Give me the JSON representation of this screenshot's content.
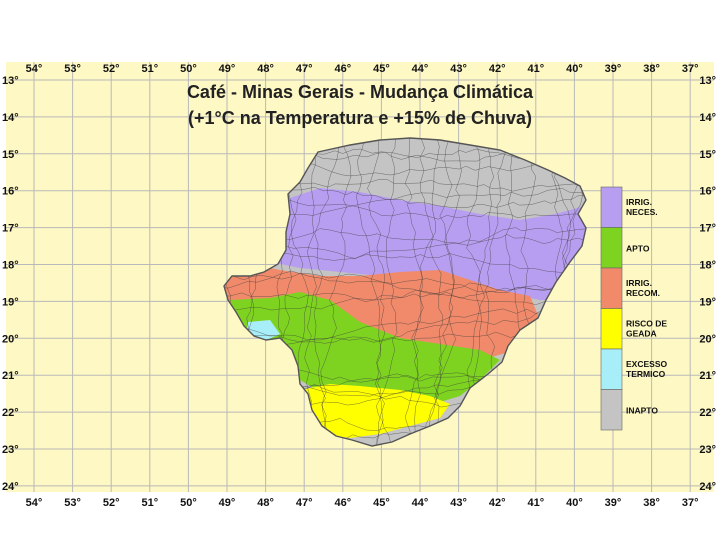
{
  "title": {
    "line1": "Café - Minas Gerais - Mudança Climática",
    "line2": "(+1°C na Temperatura e +15% de Chuva)"
  },
  "longitudes": [
    "54°",
    "53°",
    "52°",
    "51°",
    "50°",
    "49°",
    "48°",
    "47°",
    "46°",
    "45°",
    "44°",
    "43°",
    "42°",
    "41°",
    "40°",
    "39°",
    "38°",
    "37°"
  ],
  "latitudes": [
    "13°",
    "14°",
    "15°",
    "16°",
    "17°",
    "18°",
    "19°",
    "20°",
    "21°",
    "22°",
    "23°",
    "24°"
  ],
  "legend": {
    "items": [
      {
        "label": "IRRIG. NECES.",
        "lines": [
          "IRRIG.",
          "NECES."
        ],
        "color": "#b89ef0"
      },
      {
        "label": "APTO",
        "lines": [
          "APTO"
        ],
        "color": "#7ed321"
      },
      {
        "label": "IRRIG. RECOM.",
        "lines": [
          "IRRIG.",
          "RECOM."
        ],
        "color": "#f08a6a"
      },
      {
        "label": "RISCO DE GEADA",
        "lines": [
          "RISCO DE",
          "GEADA"
        ],
        "color": "#ffff00"
      },
      {
        "label": "EXCESSO TERMICO",
        "lines": [
          "EXCESSO",
          "TERMICO"
        ],
        "color": "#a8eef8"
      },
      {
        "label": "INAPTO",
        "lines": [
          "INAPTO"
        ],
        "color": "#c4c4c4"
      }
    ]
  },
  "colors": {
    "background": "#fdf8c4",
    "grid_line": "#b9b9b9",
    "border": "#555555"
  }
}
